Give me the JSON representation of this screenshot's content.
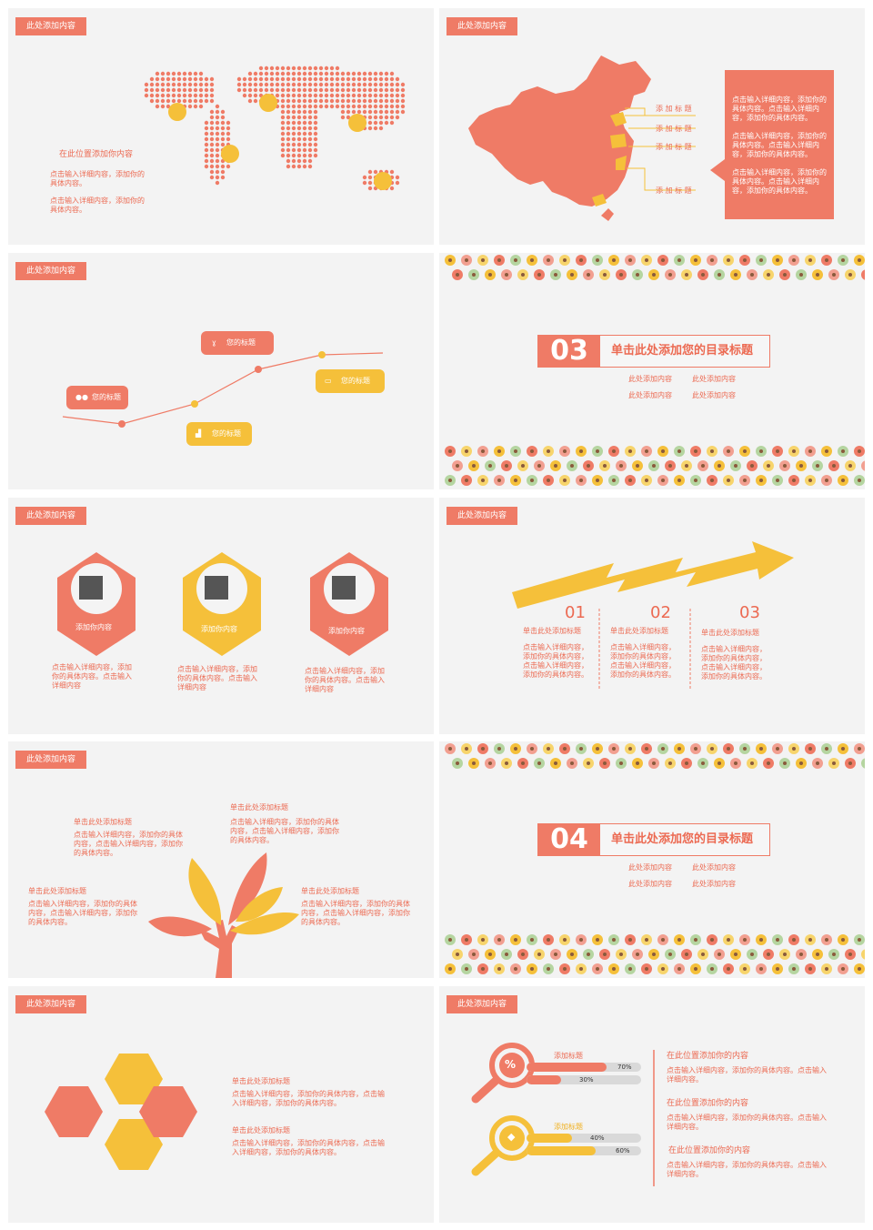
{
  "common": {
    "tag": "此处添加内容"
  },
  "s1": {
    "heading": "在此位置添加你内容",
    "p1": "点击输入详细内容，添加你的具体内容。",
    "p2": "点击输入详细内容，添加你的具体内容。"
  },
  "s2": {
    "labels": [
      "添 加 标 题",
      "添 加 标 题",
      "添 加 标 题",
      "添 加 标 题"
    ],
    "box": [
      "点击输入详细内容，添加你的具体内容。点击输入详细内容，添加你的具体内容。",
      "点击输入详细内容，添加你的具体内容。点击输入详细内容，添加你的具体内容。",
      "点击输入详细内容，添加你的具体内容。点击输入详细内容，添加你的具体内容。"
    ]
  },
  "s3": {
    "titles": [
      "您的标题",
      "您的标题",
      "您的标题",
      "您的标题"
    ]
  },
  "sec3": {
    "num": "03",
    "title": "单击此处添加您的目录标题",
    "items": [
      "此处添加内容",
      "此处添加内容",
      "此处添加内容",
      "此处添加内容"
    ]
  },
  "s5": {
    "labels": [
      "添加你内容",
      "添加你内容",
      "添加你内容"
    ],
    "texts": [
      "点击输入详细内容，添加你的具体内容。点击输入详细内容",
      "点击输入详细内容，添加你的具体内容。点击输入详细内容",
      "点击输入详细内容，添加你的具体内容。点击输入详细内容"
    ]
  },
  "s6": {
    "nums": [
      "01",
      "02",
      "03"
    ],
    "title": "单击此处添加标题",
    "text": "点击输入详细内容，添加你的具体内容，点击输入详细内容，添加你的具体内容。"
  },
  "s7": {
    "title": "单击此处添加标题",
    "text": "点击输入详细内容，添加你的具体内容，点击输入详细内容，添加你的具体内容。"
  },
  "sec4": {
    "num": "04",
    "title": "单击此处添加您的目录标题",
    "items": [
      "此处添加内容",
      "此处添加内容",
      "此处添加内容",
      "此处添加内容"
    ]
  },
  "s9": {
    "title": "单击此处添加标题",
    "text": "点击输入详细内容，添加你的具体内容，点击输入详细内容，添加你的具体内容。"
  },
  "s10": {
    "label1": "添加标题",
    "label2": "添加标题",
    "p1": "70%",
    "p2": "30%",
    "p3": "40%",
    "p4": "60%",
    "h": "在此位置添加你的内容",
    "h3": "在此位置添加你的内容",
    "text": "点击输入详细内容，添加你的具体内容。点击输入详细内容。"
  },
  "colors": {
    "coral": "#ef7b66",
    "yellow": "#f5c03a",
    "bg": "#f3f3f3"
  }
}
